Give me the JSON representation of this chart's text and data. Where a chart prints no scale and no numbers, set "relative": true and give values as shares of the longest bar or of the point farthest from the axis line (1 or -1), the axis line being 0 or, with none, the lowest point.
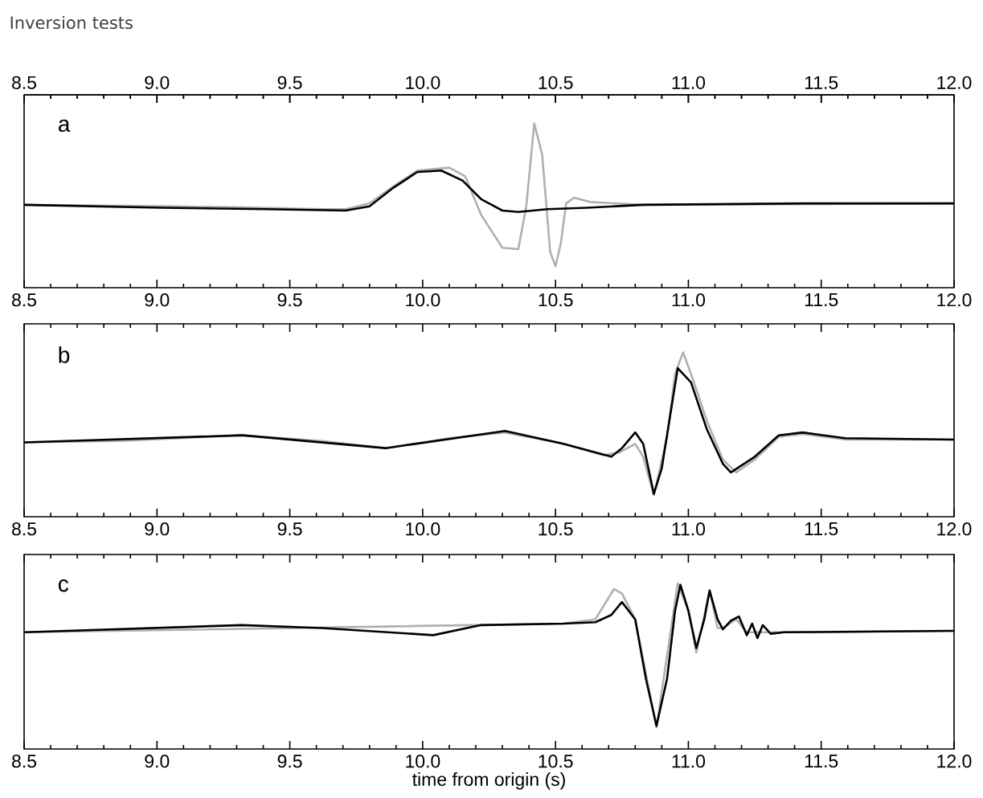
{
  "chart_data": [
    {
      "type": "line",
      "title": "Inversion tests",
      "relative": true,
      "annotations": [
        "a"
      ],
      "xlim": [
        8.5,
        12.0
      ],
      "xticks": [
        8.5,
        {
          "value": 9,
          "label": "9.0"
        },
        9.5,
        {
          "value": 10,
          "label": "10.0"
        },
        10.5,
        {
          "value": 11,
          "label": "11.0"
        },
        11.5,
        {
          "value": 12,
          "label": "12.0"
        }
      ],
      "x2lim": [
        8.5,
        12.0
      ],
      "x2ticks": [
        8.5,
        {
          "value": 9,
          "label": "9.0"
        },
        9.5,
        {
          "value": 10,
          "label": "10.0"
        },
        10.5,
        {
          "value": 11,
          "label": "11.0"
        },
        11.5,
        {
          "value": 12,
          "label": "12.0"
        }
      ],
      "series": [
        {
          "color": "#b0b0b0",
          "x": [
            8.5,
            9.014,
            9.407,
            9.619,
            9.71,
            9.8,
            9.89,
            9.98,
            10.1,
            10.16,
            10.22,
            10.3,
            10.36,
            10.39,
            10.42,
            10.45,
            10.48,
            10.5,
            10.52,
            10.54,
            10.57,
            10.63,
            10.83,
            12.0
          ],
          "values": [
            0.43,
            0.42,
            0.41,
            0.4,
            0.4,
            0.44,
            0.56,
            0.67,
            0.69,
            0.63,
            0.36,
            0.13,
            0.12,
            0.42,
            1,
            0.78,
            0.1,
            0,
            0.16,
            0.44,
            0.48,
            0.45,
            0.43,
            0.44
          ]
        },
        {
          "color": "#000000",
          "x": [
            8.5,
            9.014,
            9.407,
            9.71,
            9.8,
            9.89,
            9.98,
            10.07,
            10.15,
            10.22,
            10.3,
            10.36,
            10.47,
            10.62,
            10.83,
            11.43,
            12.0
          ],
          "values": [
            0.43,
            0.41,
            0.4,
            0.39,
            0.42,
            0.55,
            0.66,
            0.67,
            0.6,
            0.47,
            0.39,
            0.38,
            0.4,
            0.41,
            0.43,
            0.44,
            0.44
          ]
        }
      ]
    },
    {
      "type": "line",
      "relative": true,
      "annotations": [
        "b"
      ],
      "xlim": [
        8.5,
        12.0
      ],
      "xticks": [
        8.5,
        {
          "value": 9,
          "label": "9.0"
        },
        9.5,
        {
          "value": 10,
          "label": "10.0"
        },
        10.5,
        {
          "value": 11,
          "label": "11.0"
        },
        11.5,
        {
          "value": 12,
          "label": "12.0"
        }
      ],
      "series": [
        {
          "color": "#b0b0b0",
          "x": [
            8.5,
            8.86,
            9.32,
            9.62,
            9.86,
            10.1,
            10.31,
            10.53,
            10.68,
            10.74,
            10.8,
            10.83,
            10.87,
            10.92,
            10.95,
            10.98,
            11.01,
            11.07,
            11.13,
            11.18,
            11.25,
            11.34,
            11.43,
            11.59,
            12.0
          ],
          "values": [
            0.37,
            0.38,
            0.42,
            0.38,
            0.33,
            0.4,
            0.44,
            0.36,
            0.28,
            0.3,
            0.36,
            0.27,
            0,
            0.41,
            0.85,
            1,
            0.85,
            0.52,
            0.25,
            0.16,
            0.25,
            0.41,
            0.43,
            0.39,
            0.39
          ]
        },
        {
          "color": "#000000",
          "x": [
            8.5,
            9.32,
            9.86,
            10.31,
            10.53,
            10.71,
            10.75,
            10.8,
            10.83,
            10.87,
            10.9,
            10.96,
            11.01,
            11.07,
            11.13,
            11.16,
            11.25,
            11.34,
            11.43,
            11.59,
            12.0
          ],
          "values": [
            0.37,
            0.42,
            0.33,
            0.45,
            0.36,
            0.27,
            0.33,
            0.44,
            0.36,
            0.01,
            0.19,
            0.89,
            0.79,
            0.46,
            0.22,
            0.16,
            0.27,
            0.42,
            0.44,
            0.4,
            0.39
          ]
        }
      ]
    },
    {
      "type": "line",
      "relative": true,
      "annotations": [
        "c"
      ],
      "xlabel": "time from origin (s)",
      "xlim": [
        8.5,
        12.0
      ],
      "xticks": [
        8.5,
        {
          "value": 9,
          "label": "9.0"
        },
        9.5,
        {
          "value": 10,
          "label": "10.0"
        },
        10.5,
        {
          "value": 11,
          "label": "11.0"
        },
        11.5,
        {
          "value": 12,
          "label": "12.0"
        }
      ],
      "series": [
        {
          "color": "#b0b0b0",
          "x": [
            8.5,
            10.53,
            10.65,
            10.72,
            10.75,
            10.8,
            10.88,
            10.96,
            11.0,
            11.03,
            11.08,
            11.11,
            11.13,
            11.18,
            11.22,
            11.26,
            11.31,
            12.0
          ],
          "values": [
            0.66,
            0.72,
            0.75,
            0.96,
            0.93,
            0.75,
            0,
            1,
            0.81,
            0.52,
            0.95,
            0.69,
            0.69,
            0.75,
            0.66,
            0.66,
            0.66,
            0.67
          ]
        },
        {
          "color": "#000000",
          "x": [
            8.5,
            9.32,
            9.62,
            10.04,
            10.22,
            10.53,
            10.65,
            10.71,
            10.75,
            10.8,
            10.84,
            10.88,
            10.92,
            10.95,
            10.97,
            11.0,
            11.03,
            11.06,
            11.08,
            11.11,
            11.13,
            11.16,
            11.19,
            11.22,
            11.24,
            11.26,
            11.28,
            11.31,
            11.36,
            12.0
          ],
          "values": [
            0.66,
            0.71,
            0.69,
            0.64,
            0.71,
            0.72,
            0.73,
            0.78,
            0.87,
            0.75,
            0.34,
            0.01,
            0.34,
            0.81,
            0.99,
            0.81,
            0.55,
            0.75,
            0.95,
            0.75,
            0.68,
            0.74,
            0.77,
            0.64,
            0.72,
            0.62,
            0.71,
            0.65,
            0.66,
            0.67
          ]
        }
      ]
    }
  ]
}
